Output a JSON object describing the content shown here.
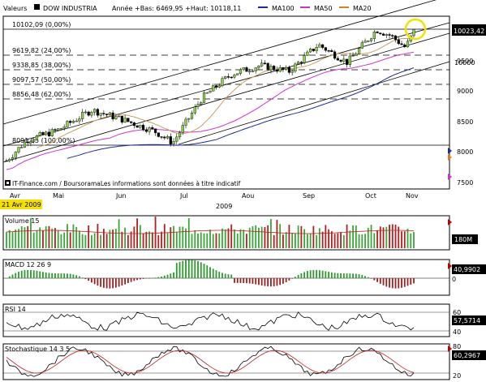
{
  "header": {
    "valeurs_label": "Valeurs",
    "index_name": "DOW INDUSTRIA",
    "range_text": "Année +Bas: 6469,95 +Haut: 10118,11",
    "ma100_label": "MA100",
    "ma50_label": "MA50",
    "ma20_label": "MA20",
    "colors": {
      "ma100": "#1a2a9a",
      "ma50": "#cc33cc",
      "ma20": "#e07a20"
    }
  },
  "fib_levels": [
    "10102,09 (0,00%)",
    "9619,82 (24,00%)",
    "9338,85 (38,00%)",
    "9097,57 (50,00%)",
    "8856,48 (62,00%)",
    "8091,05 (100,00%)"
  ],
  "price_axis": [
    "10000",
    "9500",
    "9000",
    "8500",
    "8000",
    "7500"
  ],
  "current_price": "10023,42",
  "months": [
    "Avr",
    "Mai",
    "Jun",
    "Jul",
    "Aou",
    "Sep",
    "Oct",
    "Nov"
  ],
  "year": "2009",
  "date_box": "21 Avr 2009",
  "copyright": "IT-Finance.com / BoursoramaLes informations sont données à titre indicatif",
  "volume": {
    "label": "Volume 15",
    "value": "180M"
  },
  "macd": {
    "label": "MACD 12 26 9",
    "value": "40,9902",
    "axis": [
      "0"
    ]
  },
  "rsi": {
    "label": "RSI 14",
    "value": "57,5714",
    "axis": [
      "60",
      "40"
    ]
  },
  "stochastic": {
    "label": "Stochastique 14 3 5",
    "value": "60,2967",
    "axis": [
      "80",
      "20"
    ]
  },
  "chart_data": {
    "type": "line",
    "series": [
      {
        "name": "DOW INDUSTRIA",
        "x": [
          "2009-04-21",
          "2009-05-01",
          "2009-05-15",
          "2009-06-01",
          "2009-06-15",
          "2009-07-01",
          "2009-07-10",
          "2009-07-24",
          "2009-08-07",
          "2009-08-21",
          "2009-09-04",
          "2009-09-18",
          "2009-10-02",
          "2009-10-16",
          "2009-10-23",
          "2009-10-30",
          "2009-11-03"
        ],
        "values": [
          7850,
          8200,
          8350,
          8700,
          8550,
          8350,
          8150,
          8900,
          9300,
          9450,
          9350,
          9800,
          9500,
          10050,
          9950,
          9750,
          10023
        ]
      }
    ],
    "ylim": [
      7400,
      10250
    ]
  }
}
